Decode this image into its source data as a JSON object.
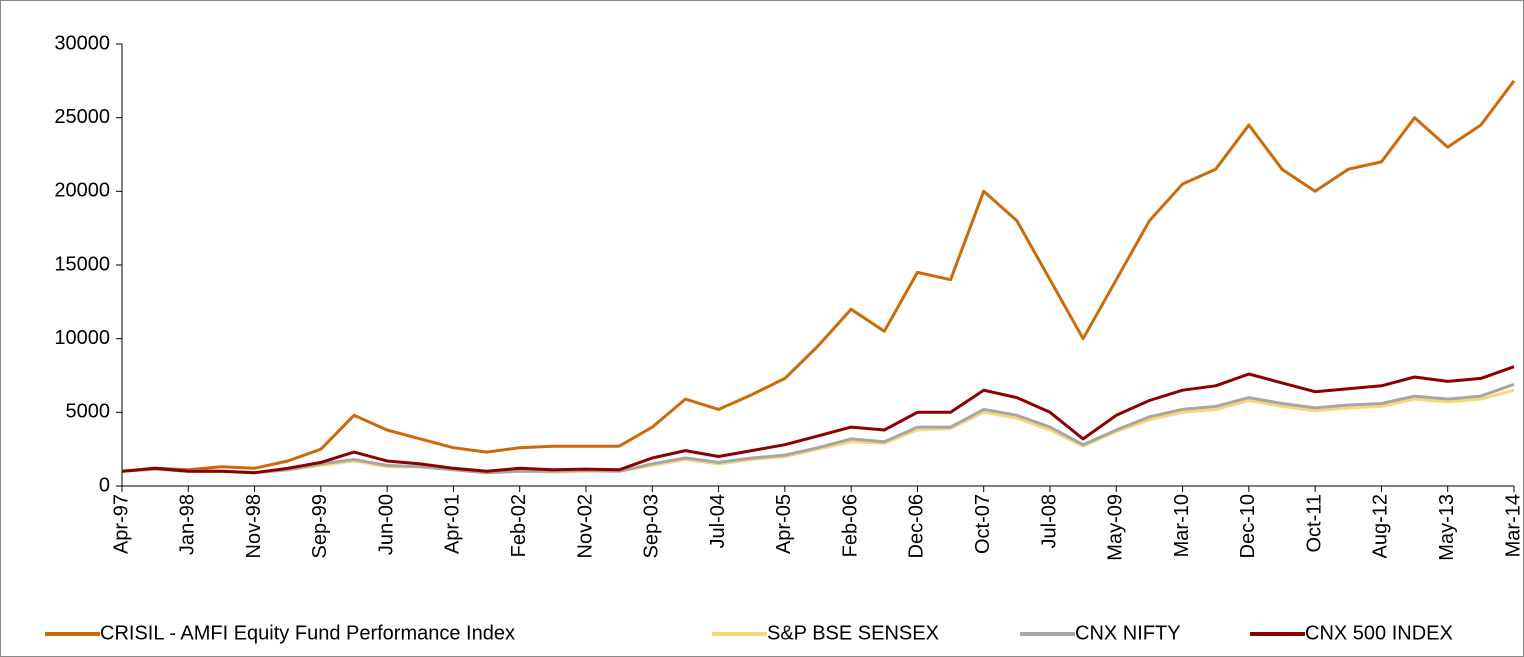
{
  "chart_data": {
    "type": "line",
    "categories": [
      "Apr-97",
      null,
      "Jan-98",
      null,
      "Nov-98",
      null,
      "Sep-99",
      null,
      "Jun-00",
      null,
      "Apr-01",
      null,
      "Feb-02",
      null,
      "Nov-02",
      null,
      "Sep-03",
      null,
      "Jul-04",
      null,
      "Apr-05",
      null,
      "Feb-06",
      null,
      "Dec-06",
      null,
      "Oct-07",
      null,
      "Jul-08",
      null,
      "May-09",
      null,
      "Mar-10",
      null,
      "Dec-10",
      null,
      "Oct-11",
      null,
      "Aug-12",
      null,
      "May-13",
      null,
      "Mar-14"
    ],
    "series": [
      {
        "name": "CRISIL - AMFI Equity Fund Performance Index",
        "color": "#cc6a0a",
        "values": [
          1000,
          1200,
          1100,
          1300,
          1200,
          1700,
          2500,
          4800,
          3800,
          3200,
          2600,
          2300,
          2600,
          2700,
          2700,
          2700,
          4000,
          5900,
          5200,
          6200,
          7300,
          9500,
          12000,
          10500,
          14500,
          14000,
          20000,
          18000,
          14000,
          10000,
          14000,
          18000,
          20500,
          21500,
          24500,
          21500,
          20000,
          21500,
          22000,
          25000,
          23000,
          24500,
          27500
        ]
      },
      {
        "name": "S&P BSE SENSEX",
        "color": "#f5d978",
        "values": [
          1000,
          1150,
          1000,
          1000,
          900,
          1100,
          1400,
          1700,
          1300,
          1300,
          1100,
          900,
          1000,
          950,
          1000,
          1000,
          1400,
          1800,
          1500,
          1800,
          2000,
          2500,
          3000,
          2900,
          3800,
          3900,
          5000,
          4600,
          3800,
          2700,
          3700,
          4500,
          5000,
          5200,
          5800,
          5400,
          5100,
          5300,
          5400,
          5900,
          5700,
          5900,
          6500
        ]
      },
      {
        "name": "CNX NIFTY",
        "color": "#a6a6a6",
        "values": [
          1000,
          1150,
          1000,
          1000,
          900,
          1100,
          1500,
          1800,
          1400,
          1300,
          1100,
          900,
          1000,
          1000,
          1050,
          1000,
          1500,
          1900,
          1600,
          1900,
          2100,
          2600,
          3200,
          3000,
          4000,
          4000,
          5200,
          4800,
          4000,
          2800,
          3800,
          4700,
          5200,
          5400,
          6000,
          5600,
          5300,
          5500,
          5600,
          6100,
          5900,
          6100,
          6900
        ]
      },
      {
        "name": "CNX 500 INDEX",
        "color": "#8b0000",
        "values": [
          1000,
          1200,
          1000,
          1000,
          900,
          1200,
          1600,
          2300,
          1700,
          1500,
          1200,
          1000,
          1200,
          1100,
          1150,
          1100,
          1900,
          2400,
          2000,
          2400,
          2800,
          3400,
          4000,
          3800,
          5000,
          5000,
          6500,
          6000,
          5000,
          3200,
          4800,
          5800,
          6500,
          6800,
          7600,
          7000,
          6400,
          6600,
          6800,
          7400,
          7100,
          7300,
          8100
        ]
      }
    ],
    "ylim": [
      0,
      30000
    ],
    "yticks": [
      0,
      5000,
      10000,
      15000,
      20000,
      25000,
      30000
    ],
    "grid": false,
    "legend": "bottom"
  }
}
